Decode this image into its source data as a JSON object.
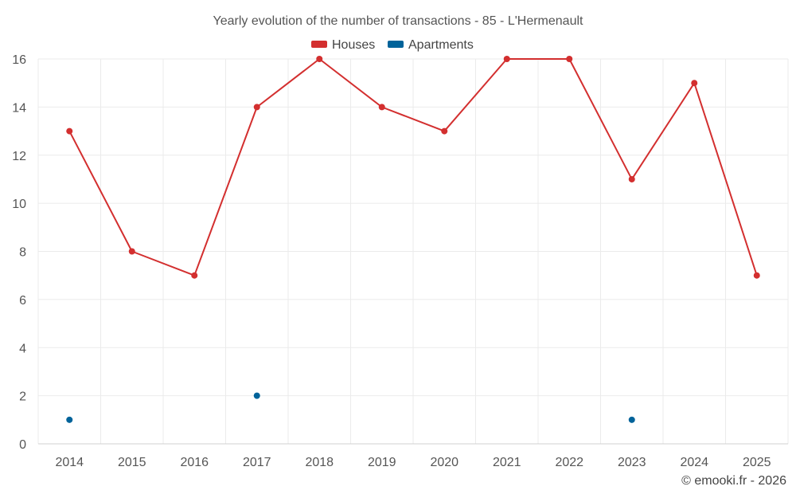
{
  "chart_data": {
    "type": "line",
    "title": "Yearly evolution of the number of transactions - 85 - L'Hermenault",
    "categories": [
      "2014",
      "2015",
      "2016",
      "2017",
      "2018",
      "2019",
      "2020",
      "2021",
      "2022",
      "2023",
      "2024",
      "2025"
    ],
    "series": [
      {
        "name": "Houses",
        "color": "#d32f2f",
        "values": [
          13,
          8,
          7,
          14,
          16,
          14,
          13,
          16,
          16,
          11,
          15,
          7
        ],
        "line": true
      },
      {
        "name": "Apartments",
        "color": "#00639a",
        "values": [
          1,
          null,
          null,
          2,
          null,
          null,
          null,
          null,
          null,
          1,
          null,
          null
        ],
        "line": false
      }
    ],
    "ylim": [
      0,
      16
    ],
    "yticks": [
      0,
      2,
      4,
      6,
      8,
      10,
      12,
      14,
      16
    ],
    "grid": true,
    "legend": "top-center"
  },
  "credit": "© emooki.fr - 2026"
}
